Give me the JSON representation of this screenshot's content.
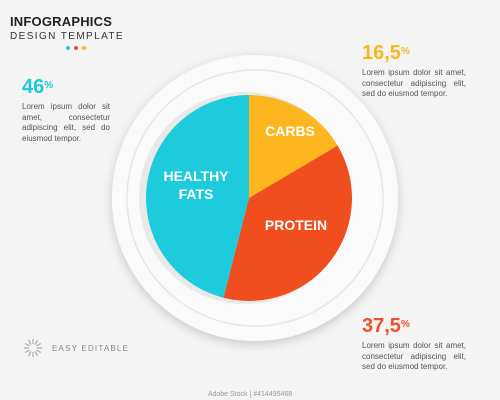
{
  "header": {
    "title": "INFOGRAPHICS",
    "subtitle": "DESIGN TEMPLATE",
    "dot_colors": [
      "#1ec8dc",
      "#f0502a",
      "#f7b71d"
    ]
  },
  "chart_data": {
    "type": "pie",
    "slices": [
      {
        "label": "CARBS",
        "value": 16.5,
        "color": "#fdb61e",
        "label_lines": [
          "CARBS"
        ]
      },
      {
        "label": "PROTEIN",
        "value": 37.5,
        "color": "#f04e1f",
        "label_lines": [
          "PROTEIN"
        ]
      },
      {
        "label": "HEALTHY FATS",
        "value": 46,
        "color": "#1dcbdc",
        "label_lines": [
          "HEALTHY",
          "FATS"
        ]
      }
    ]
  },
  "callouts": {
    "fats": {
      "value": "46",
      "unit": "%",
      "color": "#1ec8dc",
      "text": "Lorem ipsum dolor sit amet, consectetur adipiscing elit, sed do eiusmod tempor."
    },
    "carbs": {
      "value": "16,5",
      "unit": "%",
      "color": "#f7b71d",
      "text": "Lorem ipsum dolor sit amet, consectetur adipiscing elit, sed do eiusmod tempor."
    },
    "protein": {
      "value": "37,5",
      "unit": "%",
      "color": "#f0502a",
      "text": "Lorem ipsum dolor sit amet, consectetur adipiscing elit, sed do eiusmod tempor."
    }
  },
  "footer": {
    "label": "EASY EDITABLE",
    "icon": "spinner-icon"
  },
  "watermark": "Adobe Stock | #414495468"
}
